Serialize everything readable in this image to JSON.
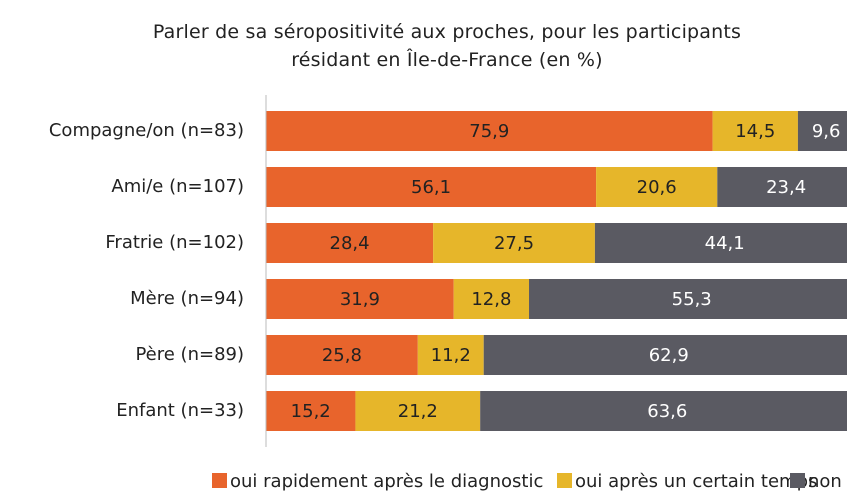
{
  "chart_data": {
    "type": "stacked_bar_horizontal",
    "title": "Parler de sa séropositivité aux proches, pour les participants résidant en Île-de-France (en %)",
    "categories": [
      "Compagne/on (n=83)",
      "Ami/e (n=107)",
      "Fratrie (n=102)",
      "Mère (n=94)",
      "Père (n=89)",
      "Enfant (n=33)"
    ],
    "series": [
      {
        "name": "oui rapidement après le diagnostic",
        "color": "#e8642c",
        "values": [
          75.9,
          56.1,
          28.4,
          31.9,
          25.8,
          15.2
        ],
        "value_labels": [
          "75,9",
          "56,1",
          "28,4",
          "31,9",
          "25,8",
          "15,2"
        ]
      },
      {
        "name": "oui après un certain temps",
        "color": "#e6b62a",
        "values": [
          14.5,
          20.6,
          27.5,
          12.8,
          11.2,
          21.2
        ],
        "value_labels": [
          "14,5",
          "20,6",
          "27,5",
          "12,8",
          "11,2",
          "21,2"
        ]
      },
      {
        "name": "non",
        "color": "#5a5a62",
        "values": [
          9.6,
          23.4,
          44.1,
          55.3,
          62.9,
          63.6
        ],
        "value_labels": [
          "9,6",
          "23,4",
          "44,1",
          "55,3",
          "62,9",
          "63,6"
        ]
      }
    ],
    "legend": "bottom"
  }
}
